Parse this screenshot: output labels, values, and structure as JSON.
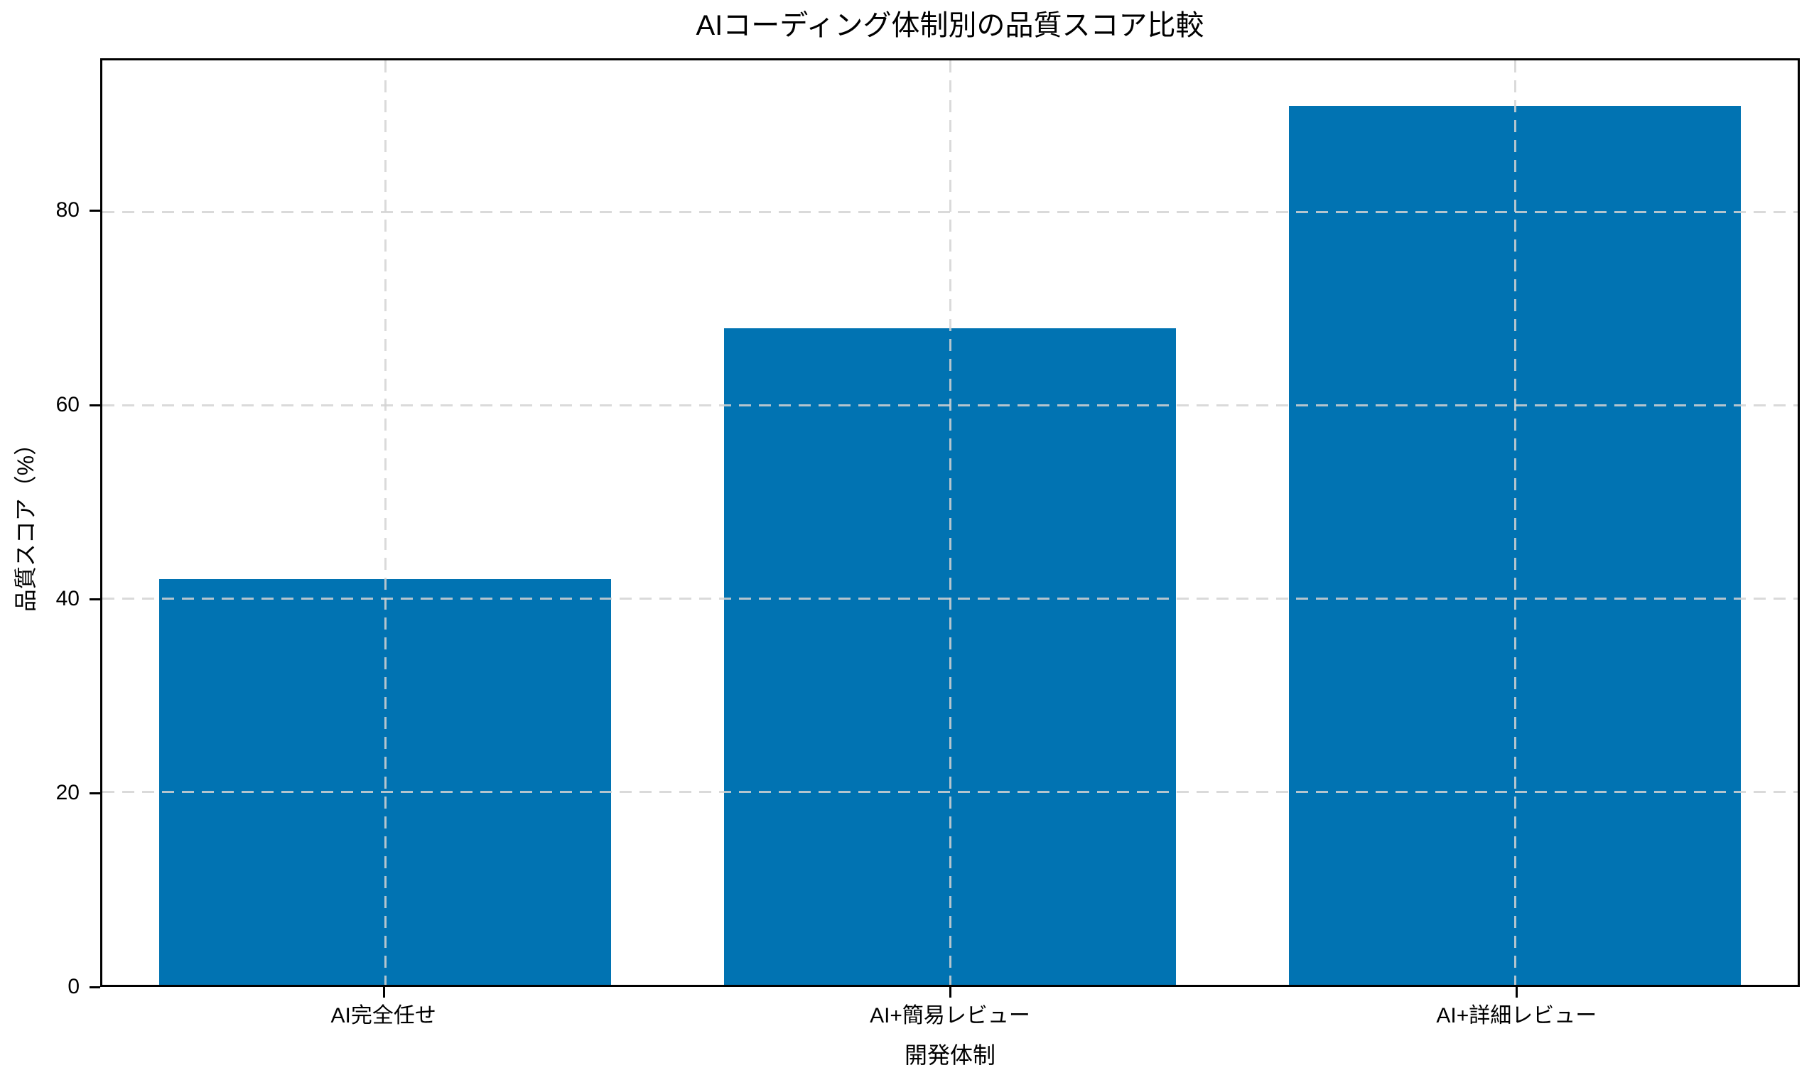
{
  "figure": {
    "background": "#ffffff",
    "spine_color": "#000000",
    "text_color": "#000000"
  },
  "chart_data": {
    "type": "bar",
    "title": "AIコーディング体制別の品質スコア比較",
    "xlabel": "開発体制",
    "ylabel": "品質スコア（%）",
    "categories": [
      "AI完全任せ",
      "AI+簡易レビュー",
      "AI+詳細レビュー"
    ],
    "values": [
      42,
      68,
      91
    ],
    "ylim": [
      0,
      95.7
    ],
    "yticks": [
      0,
      20,
      40,
      60,
      80
    ],
    "bar_color": "#0173b2",
    "bar_width_fraction": 0.8,
    "grid": {
      "on": true,
      "axis": "both",
      "style": "dashed",
      "color": "#d3d3d3",
      "drawn_over_bars": true
    },
    "legend": "none"
  }
}
